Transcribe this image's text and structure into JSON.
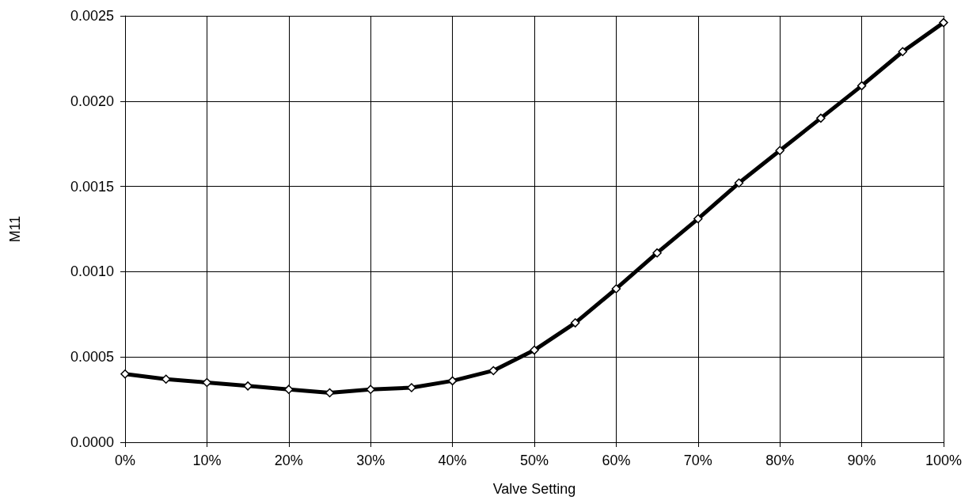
{
  "chart_data": {
    "type": "line",
    "xlabel": "Valve Setting",
    "ylabel": "M11",
    "x": [
      0,
      5,
      10,
      15,
      20,
      25,
      30,
      35,
      40,
      45,
      50,
      55,
      60,
      65,
      70,
      75,
      80,
      85,
      90,
      95,
      100
    ],
    "series": [
      {
        "color": "#000000",
        "values": [
          0.0004,
          0.00037,
          0.00035,
          0.00033,
          0.00031,
          0.00029,
          0.00031,
          0.00032,
          0.00036,
          0.00042,
          0.00054,
          0.0007,
          0.0009,
          0.00111,
          0.00131,
          0.00152,
          0.00171,
          0.0019,
          0.00209,
          0.00229,
          0.00246
        ]
      }
    ],
    "xlim": [
      0,
      100
    ],
    "xticks": [
      {
        "value": 0,
        "label": "0%"
      },
      {
        "value": 10,
        "label": "10%"
      },
      {
        "value": 20,
        "label": "20%"
      },
      {
        "value": 30,
        "label": "30%"
      },
      {
        "value": 40,
        "label": "40%"
      },
      {
        "value": 50,
        "label": "50%"
      },
      {
        "value": 60,
        "label": "60%"
      },
      {
        "value": 70,
        "label": "70%"
      },
      {
        "value": 80,
        "label": "80%"
      },
      {
        "value": 90,
        "label": "90%"
      },
      {
        "value": 100,
        "label": "100%"
      }
    ],
    "ylim": [
      0,
      0.0025
    ],
    "yticks": [
      {
        "value": 0,
        "label": "0.0000"
      },
      {
        "value": 0.0005,
        "label": "0.0005"
      },
      {
        "value": 0.001,
        "label": "0.0010"
      },
      {
        "value": 0.0015,
        "label": "0.0015"
      },
      {
        "value": 0.002,
        "label": "0.0020"
      },
      {
        "value": 0.0025,
        "label": "0.0025"
      }
    ],
    "grid": true,
    "marker": "diamond",
    "line_style": "solid"
  }
}
